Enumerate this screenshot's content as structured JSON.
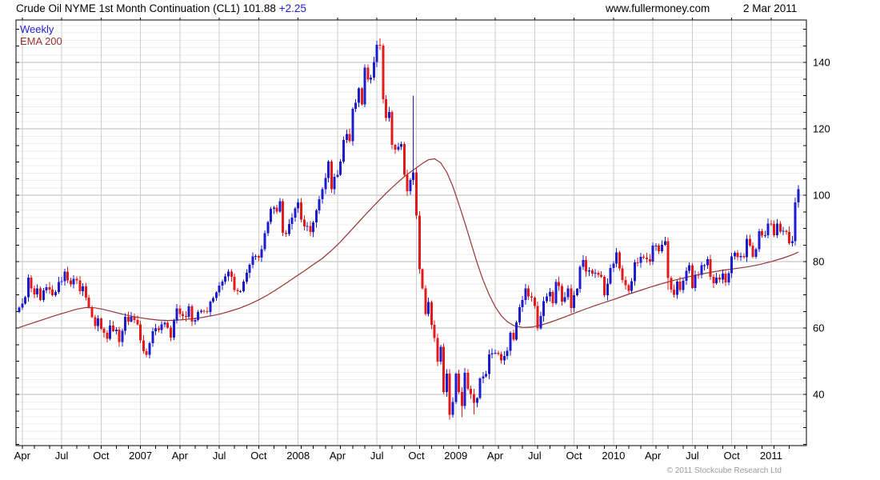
{
  "header": {
    "title": "Crude Oil NYME 1st Month Continuation (CL1) 101.88",
    "change": "+2.25",
    "website": "www.fullermoney.com",
    "date": "2 Mar 2011"
  },
  "legend": {
    "series_label": "Weekly",
    "ema_label": "EMA 200"
  },
  "footer": {
    "copyright": "© 2011 Stockcube Research Ltd"
  },
  "colors": {
    "up": "#1c1ccd",
    "down": "#e11b1b",
    "ema": "#993333",
    "grid_minor": "#ededed",
    "grid_major": "#b9b9b9",
    "grid_vert": "#cdcdcd",
    "frame": "#000000",
    "text": "#000000",
    "change": "#1e1ed2",
    "copyright": "#999999"
  },
  "chart_data": {
    "type": "candlestick",
    "frequency": "weekly",
    "title": "Crude Oil NYME 1st Month Continuation (CL1)",
    "last_price": 101.88,
    "change": 2.25,
    "as_of": "2 Mar 2011",
    "start_week": "2006-03-27",
    "y_axis": {
      "min": 24.6,
      "max": 152.8,
      "labels": [
        140,
        120,
        100,
        80,
        60,
        40
      ],
      "label_step": 20,
      "tick_step": 5,
      "minor_grid_step": 2.2222
    },
    "x_labels": [
      {
        "i": 1,
        "t": "Apr"
      },
      {
        "i": 14,
        "t": "Jul"
      },
      {
        "i": 27,
        "t": "Oct"
      },
      {
        "i": 40,
        "t": "2007"
      },
      {
        "i": 53,
        "t": "Apr"
      },
      {
        "i": 66,
        "t": "Jul"
      },
      {
        "i": 79,
        "t": "Oct"
      },
      {
        "i": 92,
        "t": "2008"
      },
      {
        "i": 105,
        "t": "Apr"
      },
      {
        "i": 118,
        "t": "Jul"
      },
      {
        "i": 131,
        "t": "Oct"
      },
      {
        "i": 144,
        "t": "2009"
      },
      {
        "i": 157,
        "t": "Apr"
      },
      {
        "i": 170,
        "t": "Jul"
      },
      {
        "i": 183,
        "t": "Oct"
      },
      {
        "i": 196,
        "t": "2010"
      },
      {
        "i": 209,
        "t": "Apr"
      },
      {
        "i": 222,
        "t": "Jul"
      },
      {
        "i": 235,
        "t": "Oct"
      },
      {
        "i": 248,
        "t": "2011"
      }
    ],
    "weekly_closes": [
      66.2,
      67.4,
      69.3,
      75.2,
      71.9,
      70.2,
      72.0,
      68.5,
      71.3,
      72.3,
      71.6,
      69.9,
      70.9,
      73.9,
      74.1,
      77.0,
      74.4,
      73.2,
      74.8,
      74.4,
      71.1,
      72.5,
      69.2,
      66.3,
      63.3,
      60.6,
      62.9,
      59.8,
      58.6,
      56.8,
      60.8,
      59.1,
      59.6,
      55.8,
      59.2,
      63.4,
      62.0,
      63.4,
      62.4,
      61.1,
      56.3,
      53.0,
      52.0,
      55.4,
      59.0,
      59.9,
      59.4,
      61.1,
      61.6,
      60.1,
      57.1,
      62.3,
      65.9,
      64.3,
      63.6,
      63.4,
      66.5,
      61.9,
      62.4,
      64.9,
      65.2,
      65.1,
      64.8,
      68.0,
      69.1,
      70.7,
      72.8,
      74.0,
      75.6,
      77.0,
      75.5,
      71.5,
      71.1,
      71.1,
      74.0,
      76.7,
      79.1,
      81.6,
      81.7,
      81.2,
      83.7,
      88.6,
      91.9,
      95.9,
      96.3,
      95.1,
      98.2,
      88.7,
      88.3,
      91.3,
      93.3,
      96.0,
      97.9,
      92.7,
      90.6,
      90.7,
      88.9,
      91.8,
      95.5,
      98.8,
      101.8,
      105.2,
      110.2,
      101.8,
      105.6,
      106.2,
      110.1,
      116.7,
      118.5,
      116.3,
      126.0,
      127.8,
      132.2,
      127.4,
      138.5,
      134.9,
      135.4,
      140.2,
      145.3,
      145.1,
      128.9,
      123.3,
      125.1,
      115.2,
      113.8,
      114.6,
      115.5,
      106.2,
      101.2,
      104.6,
      106.9,
      93.9,
      77.7,
      71.9,
      64.2,
      67.8,
      61.0,
      57.0,
      49.9,
      54.4,
      40.8,
      46.3,
      33.9,
      37.7,
      46.3,
      40.8,
      36.5,
      46.5,
      41.7,
      40.2,
      37.5,
      38.9,
      44.8,
      45.5,
      46.2,
      52.1,
      52.4,
      52.5,
      52.2,
      50.3,
      51.6,
      53.2,
      58.6,
      56.5,
      61.7,
      66.3,
      68.4,
      72.0,
      69.6,
      69.2,
      66.7,
      59.9,
      63.6,
      68.1,
      69.5,
      70.9,
      67.5,
      73.9,
      72.7,
      68.0,
      69.3,
      72.0,
      66.0,
      69.9,
      71.8,
      78.5,
      80.5,
      77.0,
      77.4,
      76.4,
      76.7,
      76.1,
      75.5,
      69.9,
      73.4,
      78.1,
      79.4,
      82.8,
      78.0,
      74.5,
      72.9,
      71.2,
      74.1,
      79.8,
      79.7,
      81.5,
      81.2,
      80.7,
      80.0,
      84.9,
      84.9,
      83.2,
      85.1,
      86.2,
      75.1,
      71.6,
      70.0,
      74.0,
      71.5,
      74.3,
      77.2,
      78.9,
      72.1,
      76.1,
      76.0,
      78.9,
      78.9,
      80.7,
      75.4,
      73.5,
      75.2,
      74.6,
      76.4,
      73.7,
      76.5,
      81.6,
      82.7,
      81.3,
      81.7,
      81.4,
      86.9,
      84.9,
      81.5,
      83.8,
      89.2,
      87.8,
      88.0,
      91.5,
      91.4,
      88.0,
      91.5,
      89.1,
      89.3,
      89.0,
      85.6,
      86.2,
      97.9,
      101.88
    ],
    "wick_overrides": {
      "118": {
        "h": 146.5
      },
      "119": {
        "h": 147.3
      },
      "130": {
        "h": 130.0
      },
      "142": {
        "l": 32.4
      },
      "146": {
        "l": 33.2
      },
      "150": {
        "l": 34.0
      },
      "214": {
        "l": 71.5
      },
      "257": {
        "h": 103.0,
        "l": 96.3
      }
    },
    "ema_points": [
      [
        0,
        60.2
      ],
      [
        4,
        61.4
      ],
      [
        8,
        62.6
      ],
      [
        12,
        63.8
      ],
      [
        16,
        64.9
      ],
      [
        19,
        65.7
      ],
      [
        22,
        66.2
      ],
      [
        25,
        66.1
      ],
      [
        28,
        65.6
      ],
      [
        31,
        64.9
      ],
      [
        34,
        64.2
      ],
      [
        37,
        63.6
      ],
      [
        40,
        63.1
      ],
      [
        43,
        62.7
      ],
      [
        46,
        62.4
      ],
      [
        49,
        62.3
      ],
      [
        52,
        62.4
      ],
      [
        55,
        62.6
      ],
      [
        58,
        62.9
      ],
      [
        61,
        63.3
      ],
      [
        64,
        63.8
      ],
      [
        67,
        64.4
      ],
      [
        70,
        65.2
      ],
      [
        73,
        66.1
      ],
      [
        76,
        67.2
      ],
      [
        79,
        68.5
      ],
      [
        82,
        70.0
      ],
      [
        85,
        71.7
      ],
      [
        88,
        73.5
      ],
      [
        91,
        75.4
      ],
      [
        94,
        77.2
      ],
      [
        97,
        79.1
      ],
      [
        100,
        81.0
      ],
      [
        103,
        83.4
      ],
      [
        106,
        86.0
      ],
      [
        109,
        89.0
      ],
      [
        112,
        92.0
      ],
      [
        115,
        95.0
      ],
      [
        118,
        97.8
      ],
      [
        121,
        100.6
      ],
      [
        124,
        103.2
      ],
      [
        127,
        105.6
      ],
      [
        129,
        107.0
      ],
      [
        131,
        108.3
      ],
      [
        133,
        109.6
      ],
      [
        135,
        110.7
      ],
      [
        137,
        111.0
      ],
      [
        139,
        109.8
      ],
      [
        141,
        107.0
      ],
      [
        143,
        102.7
      ],
      [
        145,
        97.4
      ],
      [
        147,
        91.7
      ],
      [
        149,
        85.7
      ],
      [
        151,
        79.7
      ],
      [
        153,
        74.4
      ],
      [
        155,
        70.0
      ],
      [
        157,
        66.4
      ],
      [
        159,
        63.7
      ],
      [
        161,
        61.9
      ],
      [
        163,
        60.8
      ],
      [
        166,
        60.2
      ],
      [
        169,
        60.3
      ],
      [
        172,
        60.9
      ],
      [
        175,
        61.7
      ],
      [
        178,
        62.7
      ],
      [
        181,
        63.7
      ],
      [
        184,
        64.8
      ],
      [
        187,
        65.8
      ],
      [
        190,
        66.8
      ],
      [
        193,
        67.7
      ],
      [
        196,
        68.6
      ],
      [
        200,
        69.9
      ],
      [
        204,
        71.1
      ],
      [
        208,
        72.3
      ],
      [
        212,
        73.4
      ],
      [
        216,
        74.4
      ],
      [
        220,
        75.3
      ],
      [
        224,
        76.1
      ],
      [
        228,
        76.8
      ],
      [
        232,
        77.4
      ],
      [
        236,
        77.9
      ],
      [
        240,
        78.4
      ],
      [
        244,
        79.1
      ],
      [
        248,
        80.0
      ],
      [
        252,
        81.1
      ],
      [
        255,
        82.1
      ],
      [
        257,
        82.9
      ]
    ]
  }
}
